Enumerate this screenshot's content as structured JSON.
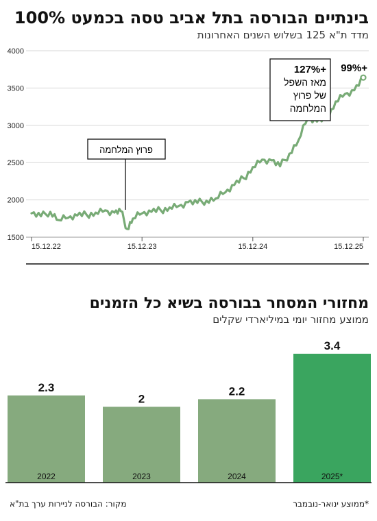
{
  "line_chart": {
    "title": "בינתיים הבורסה בתל אביב טסה בכמעט 100%",
    "subtitle": "מדד ת\"א 125 בשלוש השנים האחרונות",
    "series_color": "#78ab76",
    "annotations": {
      "war_label": "פרוץ המלחמה",
      "since_low_pct": "+127%",
      "since_low_lines": [
        "מאז השפל",
        "של פרוץ",
        "המלחמה"
      ],
      "total_pct": "+99%"
    }
  },
  "bar_chart": {
    "title": "מחזורי המסחר בבורסה בשיא כל הזמנים",
    "subtitle": "ממוצע מחזור יומי במיליארדי שקלים",
    "colors": {
      "normal": "#86aa7e",
      "highlight": "#3aa55f"
    }
  },
  "footer": {
    "source": "מקור: הבורסה לניירות ערך בת\"א",
    "note": "*ממוצע ינואר-נובמבר"
  },
  "chart_data": [
    {
      "type": "line",
      "title": "בינתיים הבורסה בתל אביב טסה בכמעט 100%",
      "subtitle": "מדד ת\"א 125 בשלוש השנים האחרונות",
      "y_ticks": [
        1500,
        2000,
        2500,
        3000,
        3500,
        4000
      ],
      "ylim": [
        1500,
        4000
      ],
      "x_ticks": [
        "15.12.22",
        "15.12.23",
        "15.12.24",
        "15.12.25"
      ],
      "grid": true,
      "series": [
        {
          "x": [
            "2022-12-15",
            "2023-01-15",
            "2023-02-15",
            "2023-03-15",
            "2023-04-15",
            "2023-05-15",
            "2023-06-15",
            "2023-07-15",
            "2023-08-15",
            "2023-09-15",
            "2023-10-06",
            "2023-10-27",
            "2023-11-15",
            "2023-12-15",
            "2024-01-15",
            "2024-02-15",
            "2024-03-15",
            "2024-04-15",
            "2024-05-15",
            "2024-06-15",
            "2024-07-15",
            "2024-08-15",
            "2024-09-15",
            "2024-10-15",
            "2024-11-15",
            "2024-12-15",
            "2025-01-15",
            "2025-02-15",
            "2025-03-15",
            "2025-04-15",
            "2025-05-15",
            "2025-06-15",
            "2025-07-15",
            "2025-08-15",
            "2025-09-15",
            "2025-10-15",
            "2025-11-15",
            "2025-12-15"
          ],
          "y": [
            1820,
            1780,
            1840,
            1730,
            1760,
            1790,
            1800,
            1830,
            1860,
            1830,
            1850,
            1610,
            1750,
            1820,
            1840,
            1860,
            1900,
            1920,
            1970,
            1960,
            1990,
            2020,
            2100,
            2200,
            2290,
            2440,
            2540,
            2530,
            2450,
            2620,
            2800,
            3100,
            3050,
            3080,
            3320,
            3420,
            3470,
            3640
          ]
        }
      ],
      "annotations": [
        "פרוץ המלחמה",
        "+127%",
        "מאז השפל של פרוץ המלחמה",
        "+99%"
      ]
    },
    {
      "type": "bar",
      "title": "מחזורי המסחר בבורסה בשיא כל הזמנים",
      "subtitle": "ממוצע מחזור יומי במיליארדי שקלים",
      "categories": [
        "2022",
        "2023",
        "2024",
        "2025*"
      ],
      "values": [
        2.3,
        2,
        2.2,
        3.4
      ],
      "value_labels": [
        "2.3",
        "2",
        "2.2",
        "3.4"
      ],
      "highlight_index": 3,
      "ylim": [
        0,
        3.4
      ]
    }
  ]
}
